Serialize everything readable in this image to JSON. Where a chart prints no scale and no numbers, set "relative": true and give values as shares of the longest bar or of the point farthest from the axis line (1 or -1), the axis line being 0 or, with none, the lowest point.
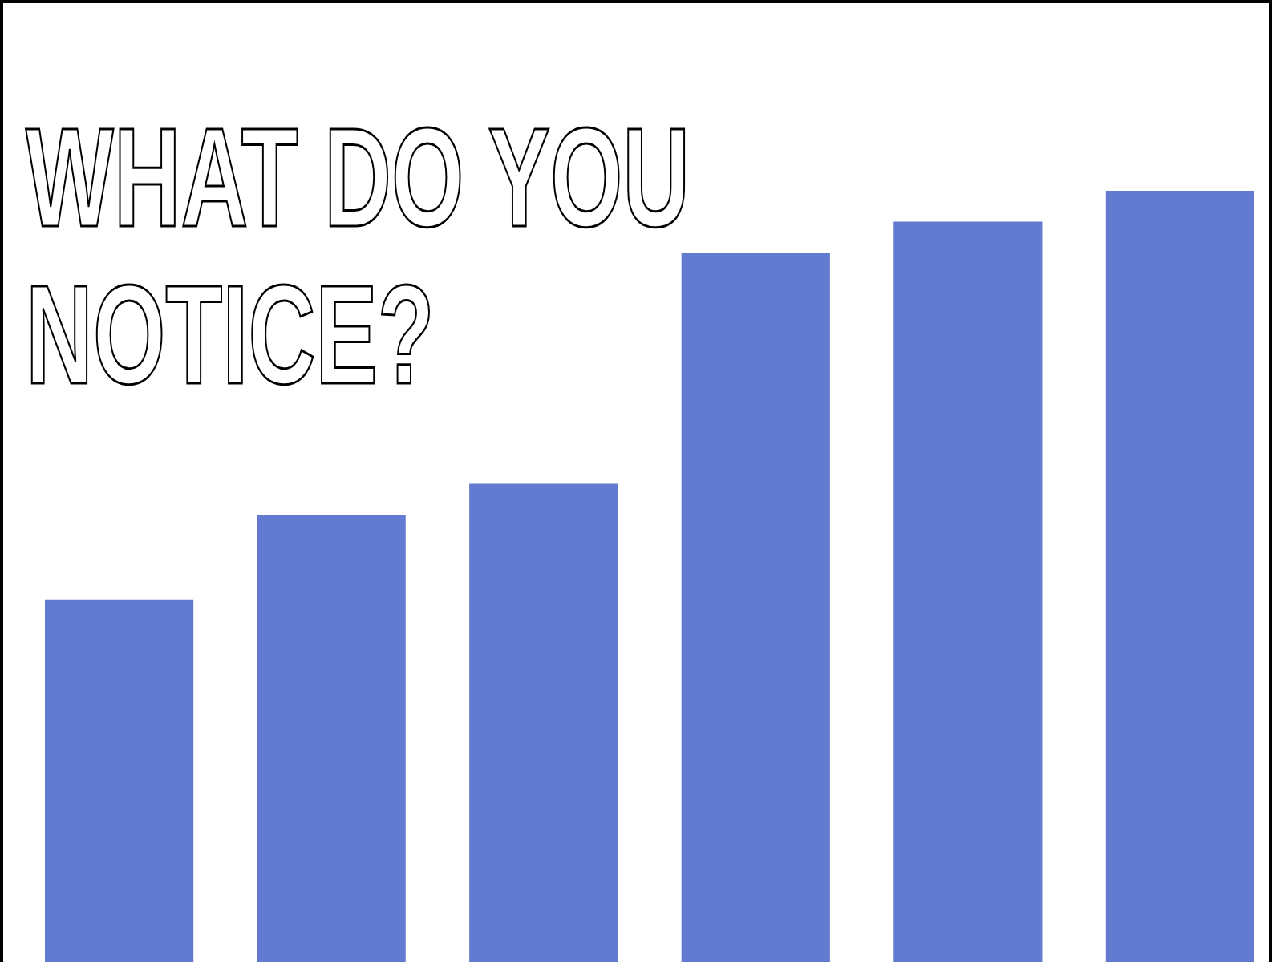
{
  "chart_data": {
    "type": "bar",
    "title": "WHAT DO YOU NOTICE?",
    "relative": true,
    "categories": [
      null,
      null,
      null,
      null,
      null,
      null
    ],
    "values": [
      0.47,
      0.58,
      0.62,
      0.92,
      0.96,
      1
    ],
    "color": "#627acf"
  }
}
